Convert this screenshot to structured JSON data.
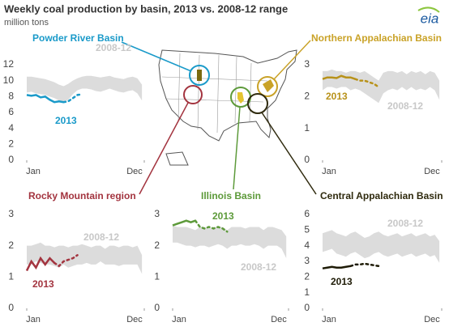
{
  "title": "Weekly coal production by basin, 2013 vs. 2008-12  range",
  "subtitle": "million tons",
  "logo": "eia",
  "chart_data": [
    {
      "type": "line",
      "title": "Powder River Basin",
      "color": "#1a9ac9",
      "x": [
        1,
        3,
        5,
        7,
        9,
        11,
        13,
        15,
        17,
        19,
        21,
        23,
        25,
        27,
        29,
        31,
        33,
        35,
        37,
        39,
        41,
        43,
        45,
        47,
        49,
        51
      ],
      "xlim": [
        1,
        52
      ],
      "xticks": [
        {
          "value": 1,
          "label": "Jan"
        },
        {
          "value": 52,
          "label": "Dec"
        }
      ],
      "ylim": [
        0,
        12
      ],
      "yticks": [
        0,
        2,
        4,
        6,
        8,
        10,
        12
      ],
      "grid": false,
      "series": [
        {
          "name": "2008-12",
          "color": "#dcdcdc",
          "high": [
            10.5,
            10.5,
            10.4,
            10.3,
            10.2,
            10.0,
            9.8,
            9.5,
            9.3,
            9.6,
            10.0,
            10.3,
            10.5,
            10.6,
            10.6,
            10.5,
            10.4,
            10.5,
            10.6,
            10.4,
            10.3,
            10.2,
            10.4,
            10.5,
            10.3,
            9.5
          ],
          "low": [
            8.5,
            8.6,
            8.4,
            8.3,
            8.2,
            8.0,
            7.8,
            7.5,
            7.3,
            7.6,
            8.3,
            8.8,
            9.0,
            9.0,
            8.9,
            8.7,
            8.6,
            8.8,
            9.0,
            8.8,
            8.6,
            8.5,
            8.7,
            8.8,
            8.4,
            7.5
          ]
        },
        {
          "name": "2013",
          "color": "#1a9ac9",
          "estimate_from": 8,
          "values": [
            8.2,
            8.1,
            8.2,
            7.9,
            8.0,
            7.6,
            7.3,
            7.4,
            7.3,
            7.4,
            7.8,
            8.2,
            8.3,
            null,
            null,
            null,
            null,
            null,
            null,
            null,
            null,
            null,
            null,
            null,
            null,
            null
          ]
        }
      ]
    },
    {
      "type": "line",
      "title": "Northern Appalachian Basin",
      "color": "#c9a227",
      "x": [
        1,
        3,
        5,
        7,
        9,
        11,
        13,
        15,
        17,
        19,
        21,
        23,
        25,
        27,
        29,
        31,
        33,
        35,
        37,
        39,
        41,
        43,
        45,
        47,
        49,
        51
      ],
      "xlim": [
        1,
        52
      ],
      "xticks": [
        {
          "value": 1,
          "label": "Jan"
        },
        {
          "value": 52,
          "label": "Dec"
        }
      ],
      "ylim": [
        0,
        3
      ],
      "yticks": [
        0,
        1,
        2,
        3
      ],
      "grid": false,
      "series": [
        {
          "name": "2008-12",
          "color": "#dcdcdc",
          "high": [
            2.8,
            2.8,
            2.85,
            2.8,
            2.8,
            2.75,
            2.8,
            2.8,
            2.75,
            2.8,
            2.7,
            2.6,
            2.5,
            2.75,
            2.8,
            2.8,
            2.75,
            2.8,
            2.7,
            2.8,
            2.75,
            2.8,
            2.7,
            2.8,
            2.75,
            2.5
          ],
          "low": [
            2.2,
            2.3,
            2.3,
            2.25,
            2.3,
            2.3,
            2.2,
            2.25,
            2.2,
            2.1,
            2.0,
            1.9,
            1.8,
            2.1,
            2.2,
            2.25,
            2.2,
            2.3,
            2.2,
            2.3,
            2.2,
            2.25,
            2.2,
            2.3,
            2.2,
            1.9
          ]
        },
        {
          "name": "2013",
          "color": "#b8921a",
          "estimate_from": 7,
          "values": [
            2.55,
            2.6,
            2.6,
            2.58,
            2.65,
            2.6,
            2.6,
            2.55,
            2.5,
            2.5,
            2.45,
            2.4,
            2.3,
            null,
            null,
            null,
            null,
            null,
            null,
            null,
            null,
            null,
            null,
            null,
            null,
            null
          ]
        }
      ]
    },
    {
      "type": "line",
      "title": "Rocky Mountain  region",
      "color": "#a3343f",
      "x": [
        1,
        3,
        5,
        7,
        9,
        11,
        13,
        15,
        17,
        19,
        21,
        23,
        25,
        27,
        29,
        31,
        33,
        35,
        37,
        39,
        41,
        43,
        45,
        47,
        49,
        51
      ],
      "xlim": [
        1,
        52
      ],
      "xticks": [
        {
          "value": 1,
          "label": "Jan"
        },
        {
          "value": 52,
          "label": "Dec"
        }
      ],
      "ylim": [
        0,
        3
      ],
      "yticks": [
        0,
        1,
        2,
        3
      ],
      "grid": false,
      "series": [
        {
          "name": "2008-12",
          "color": "#dcdcdc",
          "high": [
            2.0,
            2.0,
            2.05,
            2.1,
            2.0,
            2.0,
            1.95,
            2.0,
            2.0,
            1.95,
            2.0,
            2.0,
            2.05,
            2.0,
            1.95,
            2.0,
            2.0,
            1.9,
            2.0,
            2.0,
            1.95,
            2.0,
            2.0,
            1.95,
            2.0,
            1.7
          ],
          "low": [
            1.4,
            1.4,
            1.5,
            1.45,
            1.4,
            1.4,
            1.35,
            1.3,
            1.4,
            1.3,
            1.35,
            1.4,
            1.4,
            1.45,
            1.4,
            1.4,
            1.5,
            1.4,
            1.4,
            1.4,
            1.35,
            1.4,
            1.4,
            1.4,
            1.4,
            1.1
          ]
        },
        {
          "name": "2013",
          "color": "#a3343f",
          "estimate_from": 6,
          "values": [
            1.2,
            1.5,
            1.3,
            1.6,
            1.4,
            1.6,
            1.45,
            1.35,
            1.5,
            1.55,
            1.6,
            1.7,
            null,
            null,
            null,
            null,
            null,
            null,
            null,
            null,
            null,
            null,
            null,
            null,
            null,
            null
          ]
        }
      ]
    },
    {
      "type": "line",
      "title": "Illinois Basin",
      "color": "#5d9a3a",
      "x": [
        1,
        3,
        5,
        7,
        9,
        11,
        13,
        15,
        17,
        19,
        21,
        23,
        25,
        27,
        29,
        31,
        33,
        35,
        37,
        39,
        41,
        43,
        45,
        47,
        49,
        51
      ],
      "xlim": [
        1,
        52
      ],
      "xticks": [
        {
          "value": 1,
          "label": "Jan"
        },
        {
          "value": 52,
          "label": "Dec"
        }
      ],
      "ylim": [
        0,
        3
      ],
      "yticks": [
        0,
        1,
        2,
        3
      ],
      "grid": false,
      "series": [
        {
          "name": "2008-12",
          "color": "#dcdcdc",
          "high": [
            2.65,
            2.6,
            2.6,
            2.6,
            2.55,
            2.5,
            2.6,
            2.6,
            2.55,
            2.6,
            2.6,
            2.6,
            2.5,
            2.6,
            2.6,
            2.6,
            2.55,
            2.6,
            2.6,
            2.6,
            2.5,
            2.6,
            2.6,
            2.55,
            2.5,
            2.3
          ],
          "low": [
            2.1,
            2.1,
            2.05,
            2.0,
            2.0,
            1.95,
            2.0,
            2.0,
            1.95,
            2.0,
            2.05,
            2.0,
            1.9,
            2.0,
            2.0,
            2.05,
            2.0,
            2.0,
            2.05,
            2.0,
            1.9,
            2.0,
            2.0,
            2.0,
            1.9,
            1.6
          ]
        },
        {
          "name": "2013",
          "color": "#5d9a3a",
          "estimate_from": 5,
          "values": [
            2.65,
            2.7,
            2.75,
            2.8,
            2.75,
            2.8,
            2.6,
            2.55,
            2.6,
            2.55,
            2.6,
            2.55,
            2.45,
            null,
            null,
            null,
            null,
            null,
            null,
            null,
            null,
            null,
            null,
            null,
            null,
            null
          ]
        }
      ]
    },
    {
      "type": "line",
      "title": "Central Appalachian Basin",
      "color": "#2f2a0e",
      "x": [
        1,
        3,
        5,
        7,
        9,
        11,
        13,
        15,
        17,
        19,
        21,
        23,
        25,
        27,
        29,
        31,
        33,
        35,
        37,
        39,
        41,
        43,
        45,
        47,
        49,
        51
      ],
      "xlim": [
        1,
        52
      ],
      "xticks": [
        {
          "value": 1,
          "label": "Jan"
        },
        {
          "value": 52,
          "label": "Dec"
        }
      ],
      "ylim": [
        0,
        6
      ],
      "yticks": [
        0,
        1,
        2,
        3,
        4,
        5,
        6
      ],
      "grid": false,
      "series": [
        {
          "name": "2008-12",
          "color": "#dcdcdc",
          "high": [
            4.8,
            4.9,
            5.0,
            4.8,
            4.7,
            4.6,
            4.8,
            4.9,
            4.7,
            4.5,
            4.6,
            4.8,
            4.9,
            4.7,
            4.6,
            4.7,
            4.8,
            4.6,
            4.7,
            4.8,
            4.6,
            4.7,
            4.8,
            4.6,
            4.7,
            4.3
          ],
          "low": [
            3.6,
            3.7,
            3.8,
            3.5,
            3.4,
            3.3,
            3.5,
            3.6,
            3.4,
            3.2,
            3.3,
            3.5,
            3.6,
            3.4,
            3.3,
            3.4,
            3.5,
            3.3,
            3.4,
            3.5,
            3.3,
            3.4,
            3.5,
            3.3,
            3.4,
            2.9
          ]
        },
        {
          "name": "2013",
          "color": "#1e1b06",
          "estimate_from": 6,
          "values": [
            2.55,
            2.6,
            2.65,
            2.6,
            2.6,
            2.65,
            2.7,
            2.8,
            2.8,
            2.85,
            2.8,
            2.75,
            2.7,
            null,
            null,
            null,
            null,
            null,
            null,
            null,
            null,
            null,
            null,
            null,
            null,
            null
          ]
        }
      ]
    }
  ]
}
